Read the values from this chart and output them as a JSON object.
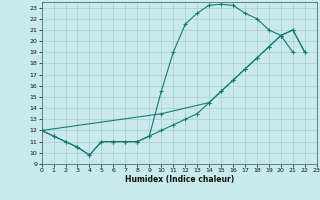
{
  "xlabel": "Humidex (Indice chaleur)",
  "bg_color": "#c8eaea",
  "line_color": "#1a7a6e",
  "grid_color": "#a8cece",
  "xlim": [
    0,
    23
  ],
  "ylim": [
    9,
    23.5
  ],
  "xticks": [
    0,
    1,
    2,
    3,
    4,
    5,
    6,
    7,
    8,
    9,
    10,
    11,
    12,
    13,
    14,
    15,
    16,
    17,
    18,
    19,
    20,
    21,
    22,
    23
  ],
  "yticks": [
    9,
    10,
    11,
    12,
    13,
    14,
    15,
    16,
    17,
    18,
    19,
    20,
    21,
    22,
    23
  ],
  "line1_upper": [
    [
      0,
      12
    ],
    [
      1,
      11.5
    ],
    [
      2,
      11
    ],
    [
      3,
      10.5
    ],
    [
      4,
      9.8
    ],
    [
      5,
      11
    ],
    [
      6,
      11
    ],
    [
      7,
      11
    ],
    [
      8,
      11
    ],
    [
      9,
      11.5
    ],
    [
      10,
      15.5
    ],
    [
      11,
      19.0
    ],
    [
      12,
      21.5
    ],
    [
      13,
      22.5
    ],
    [
      14,
      23.2
    ],
    [
      15,
      23.3
    ],
    [
      16,
      23.2
    ],
    [
      17,
      22.5
    ],
    [
      18,
      22.0
    ],
    [
      19,
      21.0
    ],
    [
      20,
      20.5
    ],
    [
      21,
      19.0
    ]
  ],
  "line2_diag": [
    [
      0,
      12
    ],
    [
      10,
      13.5
    ],
    [
      14,
      14.5
    ],
    [
      15,
      15.5
    ],
    [
      16,
      16.5
    ],
    [
      17,
      17.5
    ],
    [
      18,
      18.5
    ],
    [
      19,
      19.5
    ],
    [
      20,
      20.5
    ],
    [
      21,
      21.0
    ],
    [
      22,
      19.0
    ]
  ],
  "line3_bot": [
    [
      0,
      12
    ],
    [
      1,
      11.5
    ],
    [
      2,
      11
    ],
    [
      3,
      10.5
    ],
    [
      4,
      9.8
    ],
    [
      5,
      11
    ],
    [
      6,
      11
    ],
    [
      7,
      11
    ],
    [
      8,
      11
    ],
    [
      9,
      11.5
    ],
    [
      10,
      12.0
    ],
    [
      11,
      12.5
    ],
    [
      12,
      13.0
    ],
    [
      13,
      13.5
    ],
    [
      14,
      14.5
    ],
    [
      15,
      15.5
    ],
    [
      16,
      16.5
    ],
    [
      17,
      17.5
    ],
    [
      18,
      18.5
    ],
    [
      19,
      19.5
    ],
    [
      20,
      20.5
    ],
    [
      21,
      21.0
    ],
    [
      22,
      19.0
    ]
  ]
}
